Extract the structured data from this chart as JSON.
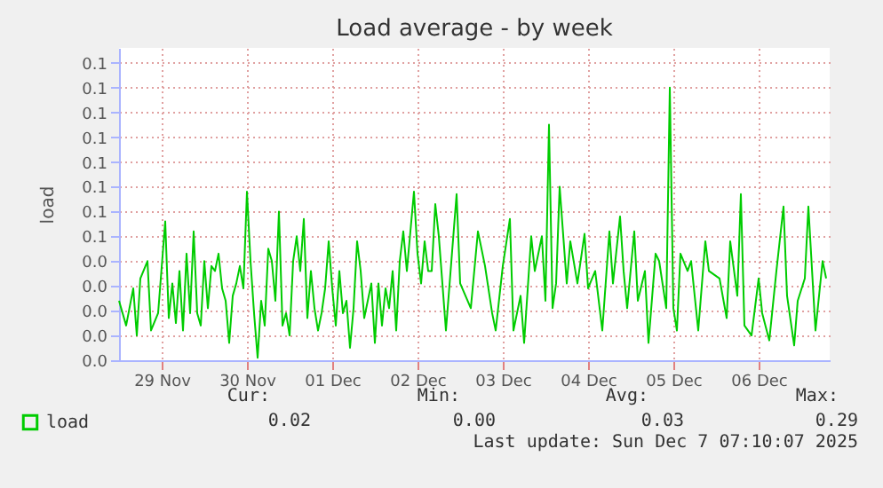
{
  "chart_data": {
    "type": "line",
    "title": "Load average - by week",
    "ylabel": "load",
    "xlim": [
      "2025-11-29T00:00",
      "2025-12-07T08:00"
    ],
    "xticks": [
      {
        "value": "2025-11-29T12:00",
        "label": "29 Nov"
      },
      {
        "value": "2025-11-30T12:00",
        "label": "30 Nov"
      },
      {
        "value": "2025-12-01T12:00",
        "label": "01 Dec"
      },
      {
        "value": "2025-12-02T12:00",
        "label": "02 Dec"
      },
      {
        "value": "2025-12-03T12:00",
        "label": "03 Dec"
      },
      {
        "value": "2025-12-04T12:00",
        "label": "04 Dec"
      },
      {
        "value": "2025-12-05T12:00",
        "label": "05 Dec"
      },
      {
        "value": "2025-12-06T12:00",
        "label": "06 Dec"
      }
    ],
    "ylim": [
      0,
      0.126
    ],
    "yticks": [
      {
        "value": 0,
        "label": "0.0"
      },
      {
        "value": 0.01,
        "label": "0.0"
      },
      {
        "value": 0.02,
        "label": "0.0"
      },
      {
        "value": 0.03,
        "label": "0.0"
      },
      {
        "value": 0.04,
        "label": "0.0"
      },
      {
        "value": 0.05,
        "label": "0.1"
      },
      {
        "value": 0.06,
        "label": "0.1"
      },
      {
        "value": 0.07,
        "label": "0.1"
      },
      {
        "value": 0.08,
        "label": "0.1"
      },
      {
        "value": 0.09,
        "label": "0.1"
      },
      {
        "value": 0.1,
        "label": "0.1"
      },
      {
        "value": 0.11,
        "label": "0.1"
      },
      {
        "value": 0.12,
        "label": "0.1"
      }
    ],
    "grid": true,
    "legend": "bottom left",
    "annotations": [
      "Cur:",
      "0.02",
      "Min:",
      "0.00",
      "Avg:",
      "0.03",
      "Max:",
      "0.29",
      "Last update: Sun Dec  7 07:10:07 2025"
    ],
    "series": [
      {
        "name": "load",
        "color": "#00cc00",
        "x": [
          "2025-11-29T00:00",
          "2025-11-29T02:00",
          "2025-11-29T04:00",
          "2025-11-29T05:00",
          "2025-11-29T06:00",
          "2025-11-29T08:00",
          "2025-11-29T09:00",
          "2025-11-29T11:00",
          "2025-11-29T13:00",
          "2025-11-29T14:00",
          "2025-11-29T15:00",
          "2025-11-29T16:00",
          "2025-11-29T17:00",
          "2025-11-29T18:00",
          "2025-11-29T19:00",
          "2025-11-29T20:00",
          "2025-11-29T21:00",
          "2025-11-29T22:00",
          "2025-11-29T23:00",
          "2025-11-30T00:00",
          "2025-11-30T01:00",
          "2025-11-30T02:00",
          "2025-11-30T03:00",
          "2025-11-30T04:00",
          "2025-11-30T05:00",
          "2025-11-30T06:00",
          "2025-11-30T07:00",
          "2025-11-30T08:00",
          "2025-11-30T09:00",
          "2025-11-30T10:00",
          "2025-11-30T11:00",
          "2025-11-30T12:00",
          "2025-11-30T13:00",
          "2025-11-30T14:00",
          "2025-11-30T15:00",
          "2025-11-30T16:00",
          "2025-11-30T17:00",
          "2025-11-30T18:00",
          "2025-11-30T19:00",
          "2025-11-30T20:00",
          "2025-11-30T21:00",
          "2025-11-30T22:00",
          "2025-11-30T23:00",
          "2025-12-01T00:00",
          "2025-12-01T01:00",
          "2025-12-01T02:00",
          "2025-12-01T03:00",
          "2025-12-01T04:00",
          "2025-12-01T05:00",
          "2025-12-01T06:00",
          "2025-12-01T07:00",
          "2025-12-01T08:00",
          "2025-12-01T09:00",
          "2025-12-01T10:00",
          "2025-12-01T11:00",
          "2025-12-01T12:00",
          "2025-12-01T13:00",
          "2025-12-01T14:00",
          "2025-12-01T15:00",
          "2025-12-01T16:00",
          "2025-12-01T17:00",
          "2025-12-01T18:00",
          "2025-12-01T19:00",
          "2025-12-01T20:00",
          "2025-12-01T21:00",
          "2025-12-01T22:00",
          "2025-12-01T23:00",
          "2025-12-02T00:00",
          "2025-12-02T01:00",
          "2025-12-02T02:00",
          "2025-12-02T03:00",
          "2025-12-02T04:00",
          "2025-12-02T05:00",
          "2025-12-02T06:00",
          "2025-12-02T07:00",
          "2025-12-02T08:00",
          "2025-12-02T09:00",
          "2025-12-02T10:00",
          "2025-12-02T11:00",
          "2025-12-02T12:00",
          "2025-12-02T13:00",
          "2025-12-02T14:00",
          "2025-12-02T15:00",
          "2025-12-02T16:00",
          "2025-12-02T17:00",
          "2025-12-02T18:00",
          "2025-12-02T20:00",
          "2025-12-02T23:00",
          "2025-12-03T00:00",
          "2025-12-03T03:00",
          "2025-12-03T05:00",
          "2025-12-03T07:00",
          "2025-12-03T09:00",
          "2025-12-03T10:00",
          "2025-12-03T12:00",
          "2025-12-03T14:00",
          "2025-12-03T15:00",
          "2025-12-03T17:00",
          "2025-12-03T18:00",
          "2025-12-03T20:00",
          "2025-12-03T21:00",
          "2025-12-03T23:00",
          "2025-12-04T00:00",
          "2025-12-04T01:00",
          "2025-12-04T02:00",
          "2025-12-04T03:00",
          "2025-12-04T04:00",
          "2025-12-04T06:00",
          "2025-12-04T07:00",
          "2025-12-04T09:00",
          "2025-12-04T11:00",
          "2025-12-04T12:00",
          "2025-12-04T14:00",
          "2025-12-04T16:00",
          "2025-12-04T18:00",
          "2025-12-04T19:00",
          "2025-12-04T21:00",
          "2025-12-04T22:00",
          "2025-12-04T23:00",
          "2025-12-05T01:00",
          "2025-12-05T02:00",
          "2025-12-05T04:00",
          "2025-12-05T05:00",
          "2025-12-05T07:00",
          "2025-12-05T08:00",
          "2025-12-05T10:00",
          "2025-12-05T11:00",
          "2025-12-05T12:00",
          "2025-12-05T13:00",
          "2025-12-05T14:00",
          "2025-12-05T16:00",
          "2025-12-05T17:00",
          "2025-12-05T19:00",
          "2025-12-05T21:00",
          "2025-12-05T22:00",
          "2025-12-06T01:00",
          "2025-12-06T03:00",
          "2025-12-06T04:00",
          "2025-12-06T06:00",
          "2025-12-06T07:00",
          "2025-12-06T08:00",
          "2025-12-06T10:00",
          "2025-12-06T12:00",
          "2025-12-06T13:00",
          "2025-12-06T15:00",
          "2025-12-06T17:00",
          "2025-12-06T19:00",
          "2025-12-06T20:00",
          "2025-12-06T22:00",
          "2025-12-06T23:00",
          "2025-12-07T01:00",
          "2025-12-07T02:00",
          "2025-12-07T04:00",
          "2025-12-07T06:00",
          "2025-12-07T07:00"
        ],
        "values": [
          0.024,
          0.014,
          0.029,
          0.01,
          0.033,
          0.04,
          0.012,
          0.019,
          0.056,
          0.017,
          0.031,
          0.015,
          0.036,
          0.012,
          0.043,
          0.019,
          0.052,
          0.019,
          0.014,
          0.04,
          0.021,
          0.038,
          0.036,
          0.043,
          0.029,
          0.024,
          0.007,
          0.026,
          0.031,
          0.038,
          0.029,
          0.068,
          0.04,
          0.019,
          0.001,
          0.024,
          0.014,
          0.045,
          0.04,
          0.024,
          0.06,
          0.014,
          0.019,
          0.01,
          0.04,
          0.05,
          0.036,
          0.057,
          0.017,
          0.036,
          0.021,
          0.012,
          0.019,
          0.029,
          0.048,
          0.029,
          0.014,
          0.036,
          0.019,
          0.024,
          0.005,
          0.021,
          0.048,
          0.036,
          0.017,
          0.024,
          0.031,
          0.007,
          0.031,
          0.014,
          0.029,
          0.021,
          0.036,
          0.012,
          0.04,
          0.052,
          0.036,
          0.052,
          0.068,
          0.043,
          0.031,
          0.048,
          0.036,
          0.036,
          0.063,
          0.05,
          0.012,
          0.067,
          0.031,
          0.021,
          0.052,
          0.038,
          0.019,
          0.012,
          0.038,
          0.057,
          0.012,
          0.026,
          0.007,
          0.05,
          0.036,
          0.05,
          0.024,
          0.095,
          0.021,
          0.031,
          0.07,
          0.031,
          0.048,
          0.031,
          0.051,
          0.029,
          0.036,
          0.012,
          0.052,
          0.031,
          0.058,
          0.036,
          0.021,
          0.052,
          0.024,
          0.036,
          0.007,
          0.043,
          0.04,
          0.021,
          0.11,
          0.021,
          0.012,
          0.043,
          0.036,
          0.04,
          0.012,
          0.048,
          0.036,
          0.033,
          0.017,
          0.048,
          0.026,
          0.067,
          0.014,
          0.01,
          0.033,
          0.019,
          0.008,
          0.036,
          0.062,
          0.026,
          0.006,
          0.024,
          0.033,
          0.062,
          0.012,
          0.04,
          0.033
        ]
      }
    ]
  }
}
